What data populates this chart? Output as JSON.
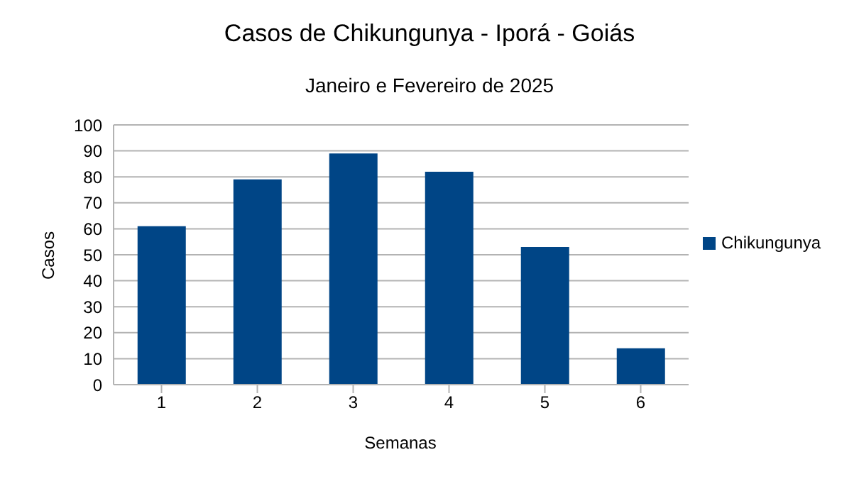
{
  "chart_data": {
    "type": "bar",
    "title": "Casos de Chikungunya - Iporá - Goiás",
    "subtitle": "Janeiro e Fevereiro de 2025",
    "xlabel": "Semanas",
    "ylabel": "Casos",
    "categories": [
      "1",
      "2",
      "3",
      "4",
      "5",
      "6"
    ],
    "series": [
      {
        "name": "Chikungunya",
        "color": "#004586",
        "values": [
          61,
          79,
          89,
          82,
          53,
          14
        ]
      }
    ],
    "ylim": [
      0,
      100
    ],
    "yticks": [
      0,
      10,
      20,
      30,
      40,
      50,
      60,
      70,
      80,
      90,
      100
    ],
    "grid": "y",
    "legend": "right"
  }
}
